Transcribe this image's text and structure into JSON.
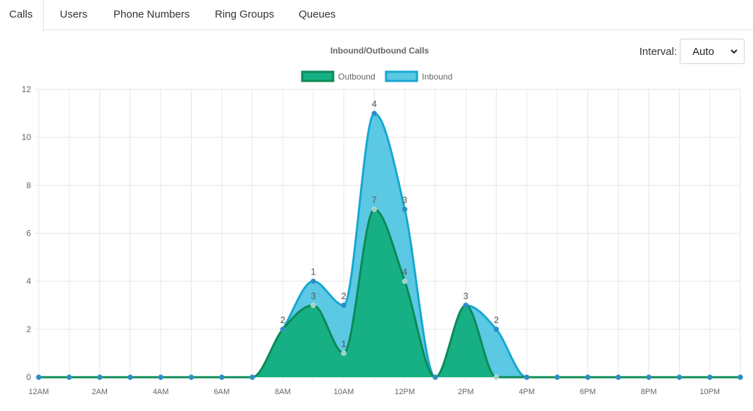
{
  "tabs": [
    {
      "label": "Calls",
      "active": true
    },
    {
      "label": "Users",
      "active": false
    },
    {
      "label": "Phone Numbers",
      "active": false
    },
    {
      "label": "Ring Groups",
      "active": false
    },
    {
      "label": "Queues",
      "active": false
    }
  ],
  "interval": {
    "label": "Interval:",
    "selected": "Auto",
    "icon": "chevron-down-icon"
  },
  "chart_data": {
    "type": "area",
    "title": "Inbound/Outbound Calls",
    "stacked": true,
    "x": [
      "12AM",
      "1AM",
      "2AM",
      "3AM",
      "4AM",
      "5AM",
      "6AM",
      "7AM",
      "8AM",
      "9AM",
      "10AM",
      "11AM",
      "12PM",
      "1PM",
      "2PM",
      "3PM",
      "4PM",
      "5PM",
      "6PM",
      "7PM",
      "8PM",
      "9PM",
      "10PM",
      "11PM"
    ],
    "x_tick_labels": [
      "12AM",
      "2AM",
      "4AM",
      "6AM",
      "8AM",
      "10AM",
      "12PM",
      "2PM",
      "4PM",
      "6PM",
      "8PM",
      "10PM"
    ],
    "series": [
      {
        "name": "Outbound",
        "color": "#17b085",
        "border": "#0b8a55",
        "values": [
          0,
          0,
          0,
          0,
          0,
          0,
          0,
          0,
          2,
          3,
          1,
          7,
          4,
          0,
          3,
          0,
          0,
          0,
          0,
          0,
          0,
          0,
          0,
          0
        ]
      },
      {
        "name": "Inbound",
        "color": "#5bc8e4",
        "border": "#16a7d0",
        "values": [
          0,
          0,
          0,
          0,
          0,
          0,
          0,
          0,
          0,
          1,
          2,
          4,
          3,
          0,
          0,
          2,
          0,
          0,
          0,
          0,
          0,
          0,
          0,
          0
        ]
      }
    ],
    "ylim": [
      0,
      12
    ],
    "y_ticks": [
      0,
      2,
      4,
      6,
      8,
      10,
      12
    ],
    "grid": true,
    "legend": "top",
    "point_labels": {
      "Outbound": [
        "",
        "",
        "",
        "",
        "",
        "",
        "",
        "",
        "2",
        "3",
        "1",
        "7",
        "4",
        "",
        "3",
        "",
        "",
        "",
        "",
        "",
        "",
        "",
        "",
        ""
      ],
      "Inbound": [
        "",
        "",
        "",
        "",
        "",
        "",
        "",
        "",
        "",
        "1",
        "2",
        "4",
        "3",
        "",
        "",
        "2",
        "",
        "",
        "",
        "",
        "",
        "",
        "",
        ""
      ]
    }
  }
}
